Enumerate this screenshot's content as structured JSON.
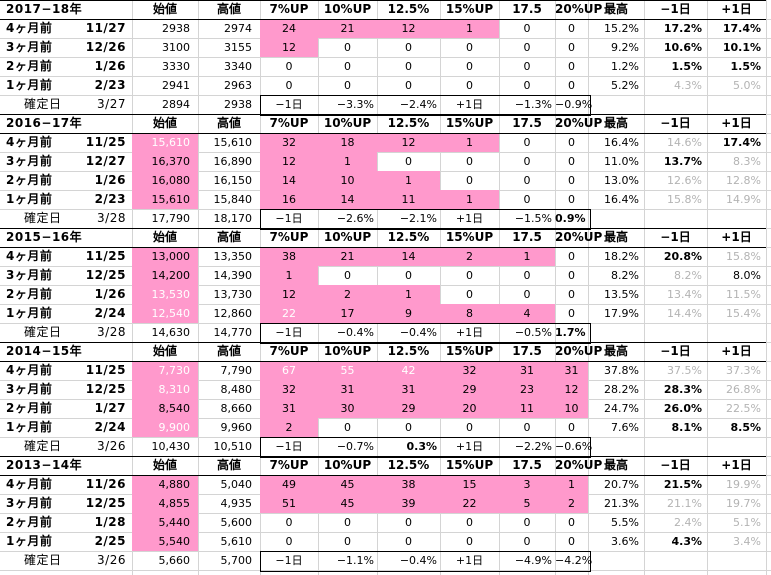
{
  "columns": [
    "始値",
    "高値",
    "7%UP",
    "10%UP",
    "12.5%",
    "15%UP",
    "17.5",
    "20%UP",
    "最高",
    "−1日",
    "+1日"
  ],
  "blocks": [
    {
      "title": "2017−18年",
      "rows": [
        {
          "label": "4ヶ月前",
          "date": "11/27",
          "open": "2938",
          "high": "2974",
          "c7": "24",
          "c10": "21",
          "c125": "12",
          "c15": "1",
          "c175": "0",
          "c20": "0",
          "max": "15.2%",
          "minus1": "17.2%",
          "plus1": "17.4%"
        },
        {
          "label": "3ヶ月前",
          "date": "12/26",
          "open": "3100",
          "high": "3155",
          "c7": "12",
          "c10": "0",
          "c125": "0",
          "c15": "0",
          "c175": "0",
          "c20": "0",
          "max": "9.2%",
          "minus1": "10.6%",
          "plus1": "10.1%"
        },
        {
          "label": "2ヶ月前",
          "date": "1/26",
          "open": "3330",
          "high": "3340",
          "c7": "0",
          "c10": "0",
          "c125": "0",
          "c15": "0",
          "c175": "0",
          "c20": "0",
          "max": "1.2%",
          "minus1": "1.5%",
          "plus1": "1.5%"
        },
        {
          "label": "1ヶ月前",
          "date": "2/23",
          "open": "2941",
          "high": "2963",
          "c7": "0",
          "c10": "0",
          "c125": "0",
          "c15": "0",
          "c175": "0",
          "c20": "0",
          "max": "5.2%",
          "minus1": "4.3%",
          "plus1": "5.0%"
        }
      ],
      "confirm": {
        "label": "確定日",
        "date": "3/27",
        "open": "2894",
        "high": "2938",
        "m1": "−1日",
        "v1": "−3.3%",
        "v2": "−2.4%",
        "p1": "+1日",
        "v3": "−1.3%",
        "v4": "−0.9%"
      }
    },
    {
      "title": "2016−17年",
      "rows": [
        {
          "label": "4ヶ月前",
          "date": "11/25",
          "open": "15,610",
          "high": "15,610",
          "c7": "32",
          "c10": "18",
          "c125": "12",
          "c15": "1",
          "c175": "0",
          "c20": "0",
          "max": "16.4%",
          "minus1": "14.6%",
          "plus1": "17.4%"
        },
        {
          "label": "3ヶ月前",
          "date": "12/27",
          "open": "16,370",
          "high": "16,890",
          "c7": "12",
          "c10": "1",
          "c125": "0",
          "c15": "0",
          "c175": "0",
          "c20": "0",
          "max": "11.0%",
          "minus1": "13.7%",
          "plus1": "8.3%"
        },
        {
          "label": "2ヶ月前",
          "date": "1/26",
          "open": "16,080",
          "high": "16,150",
          "c7": "14",
          "c10": "10",
          "c125": "1",
          "c15": "0",
          "c175": "0",
          "c20": "0",
          "max": "13.0%",
          "minus1": "12.6%",
          "plus1": "12.8%"
        },
        {
          "label": "1ヶ月前",
          "date": "2/23",
          "open": "15,610",
          "high": "15,840",
          "c7": "16",
          "c10": "14",
          "c125": "11",
          "c15": "1",
          "c175": "0",
          "c20": "0",
          "max": "16.4%",
          "minus1": "15.8%",
          "plus1": "14.9%"
        }
      ],
      "confirm": {
        "label": "確定日",
        "date": "3/28",
        "open": "17,790",
        "high": "18,170",
        "m1": "−1日",
        "v1": "−2.6%",
        "v2": "−2.1%",
        "p1": "+1日",
        "v3": "−1.5%",
        "v4": "0.9%"
      }
    },
    {
      "title": "2015−16年",
      "rows": [
        {
          "label": "4ヶ月前",
          "date": "11/25",
          "open": "13,000",
          "high": "13,350",
          "c7": "38",
          "c10": "21",
          "c125": "14",
          "c15": "2",
          "c175": "1",
          "c20": "0",
          "max": "18.2%",
          "minus1": "20.8%",
          "plus1": "15.8%"
        },
        {
          "label": "3ヶ月前",
          "date": "12/25",
          "open": "14,200",
          "high": "14,390",
          "c7": "1",
          "c10": "0",
          "c125": "0",
          "c15": "0",
          "c175": "0",
          "c20": "0",
          "max": "8.2%",
          "minus1": "8.2%",
          "plus1": "8.0%"
        },
        {
          "label": "2ヶ月前",
          "date": "1/26",
          "open": "13,530",
          "high": "13,730",
          "c7": "12",
          "c10": "2",
          "c125": "1",
          "c15": "0",
          "c175": "0",
          "c20": "0",
          "max": "13.5%",
          "minus1": "13.4%",
          "plus1": "11.5%"
        },
        {
          "label": "1ヶ月前",
          "date": "2/24",
          "open": "12,540",
          "high": "12,860",
          "c7": "22",
          "c10": "17",
          "c125": "9",
          "c15": "8",
          "c175": "4",
          "c20": "0",
          "max": "17.9%",
          "minus1": "14.4%",
          "plus1": "15.4%"
        }
      ],
      "confirm": {
        "label": "確定日",
        "date": "3/28",
        "open": "14,630",
        "high": "14,770",
        "m1": "−1日",
        "v1": "−0.4%",
        "v2": "−0.4%",
        "p1": "+1日",
        "v3": "−0.5%",
        "v4": "1.7%"
      }
    },
    {
      "title": "2014−15年",
      "rows": [
        {
          "label": "4ヶ月前",
          "date": "11/25",
          "open": "7,730",
          "high": "7,790",
          "c7": "67",
          "c10": "55",
          "c125": "42",
          "c15": "32",
          "c175": "31",
          "c20": "31",
          "max": "37.8%",
          "minus1": "37.5%",
          "plus1": "37.3%"
        },
        {
          "label": "3ヶ月前",
          "date": "12/25",
          "open": "8,310",
          "high": "8,480",
          "c7": "32",
          "c10": "31",
          "c125": "31",
          "c15": "29",
          "c175": "23",
          "c20": "12",
          "max": "28.2%",
          "minus1": "28.3%",
          "plus1": "26.8%"
        },
        {
          "label": "2ヶ月前",
          "date": "1/27",
          "open": "8,540",
          "high": "8,660",
          "c7": "31",
          "c10": "30",
          "c125": "29",
          "c15": "20",
          "c175": "11",
          "c20": "10",
          "max": "24.7%",
          "minus1": "26.0%",
          "plus1": "22.5%"
        },
        {
          "label": "1ヶ月前",
          "date": "2/24",
          "open": "9,900",
          "high": "9,960",
          "c7": "2",
          "c10": "0",
          "c125": "0",
          "c15": "0",
          "c175": "0",
          "c20": "0",
          "max": "7.6%",
          "minus1": "8.1%",
          "plus1": "8.5%"
        }
      ],
      "confirm": {
        "label": "確定日",
        "date": "3/26",
        "open": "10,430",
        "high": "10,510",
        "m1": "−1日",
        "v1": "−0.7%",
        "v2": "0.3%",
        "p1": "+1日",
        "v3": "−2.2%",
        "v4": "−0.6%"
      }
    },
    {
      "title": "2013−14年",
      "rows": [
        {
          "label": "4ヶ月前",
          "date": "11/26",
          "open": "4,880",
          "high": "5,040",
          "c7": "49",
          "c10": "45",
          "c125": "38",
          "c15": "15",
          "c175": "3",
          "c20": "1",
          "max": "20.7%",
          "minus1": "21.5%",
          "plus1": "19.9%"
        },
        {
          "label": "3ヶ月前",
          "date": "12/25",
          "open": "4,855",
          "high": "4,935",
          "c7": "51",
          "c10": "45",
          "c125": "39",
          "c15": "22",
          "c175": "5",
          "c20": "2",
          "max": "21.3%",
          "minus1": "21.1%",
          "plus1": "19.7%"
        },
        {
          "label": "2ヶ月前",
          "date": "1/28",
          "open": "5,440",
          "high": "5,600",
          "c7": "0",
          "c10": "0",
          "c125": "0",
          "c15": "0",
          "c175": "0",
          "c20": "0",
          "max": "5.5%",
          "minus1": "2.4%",
          "plus1": "5.1%"
        },
        {
          "label": "1ヶ月前",
          "date": "2/25",
          "open": "5,540",
          "high": "5,610",
          "c7": "0",
          "c10": "0",
          "c125": "0",
          "c15": "0",
          "c175": "0",
          "c20": "0",
          "max": "3.6%",
          "minus1": "4.3%",
          "plus1": "3.4%"
        }
      ],
      "confirm": {
        "label": "確定日",
        "date": "3/26",
        "open": "5,660",
        "high": "5,700",
        "m1": "−1日",
        "v1": "−1.1%",
        "v2": "−0.4%",
        "p1": "+1日",
        "v3": "−4.9%",
        "v4": "−4.2%"
      }
    }
  ],
  "colors": {
    "highlight": "#ff99cc",
    "muted": "#b3b3b3",
    "gridline": "#d4d4d4"
  }
}
